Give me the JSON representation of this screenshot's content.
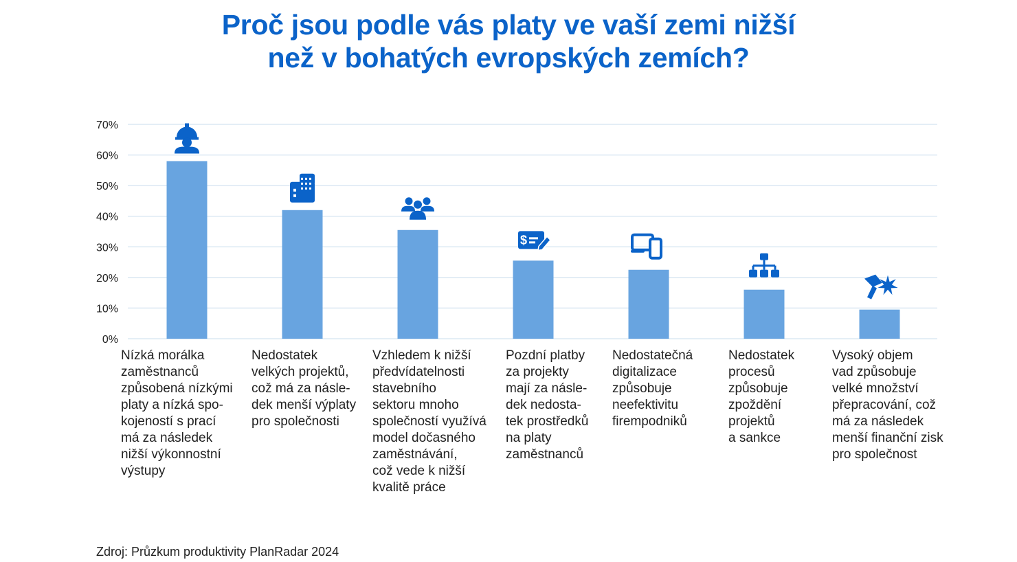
{
  "title_lines": [
    "Proč jsou podle vás platy ve vaší zemi nižší",
    "než v bohatých evropských zemích?"
  ],
  "source": "Zdroj: Průzkum produktivity PlanRadar 2024",
  "colors": {
    "title": "#0b63c9",
    "bar": "#68a4e0",
    "icon": "#0b63c9",
    "grid": "#dbe8f3",
    "text": "#222222"
  },
  "chart_data": {
    "type": "bar",
    "title": "Proč jsou podle vás platy ve vaší zemi nižší než v bohatých evropských zemích?",
    "xlabel": "",
    "ylabel": "",
    "ylim": [
      0,
      70
    ],
    "y_ticks": [
      0,
      10,
      20,
      30,
      40,
      50,
      60,
      70
    ],
    "y_tick_suffix": "%",
    "grid": true,
    "categories": [
      [
        "Nízká morálka",
        "zaměstnanců",
        "způsobená nízkými",
        "platy a nízká spo-",
        "kojeností s prací",
        "má za následek",
        "nižší výkonnostní",
        "výstupy"
      ],
      [
        "Nedostatek",
        "velkých projektů,",
        "což má za násle-",
        "dek menší výplaty",
        "pro společnosti"
      ],
      [
        "Vzhledem k nižší",
        "předvídatelnosti",
        "stavebního",
        "sektoru mnoho",
        "společností využívá",
        "model dočasného",
        "zaměstnávání,",
        "což vede k nižší",
        "kvalitě práce"
      ],
      [
        "Pozdní platby",
        "za projekty",
        "mají za násle-",
        "dek nedosta-",
        "tek prostředků",
        "na platy",
        "zaměstnanců"
      ],
      [
        "Nedostatečná",
        "digitalizace",
        "způsobuje",
        "neefektivitu",
        "firempodniků"
      ],
      [
        "Nedostatek",
        "procesů",
        "způsobuje",
        "zpoždění",
        "projektů",
        "a sankce"
      ],
      [
        "Vysoký objem",
        "vad způsobuje",
        "velké množství",
        "přepracování, což",
        "má za následek",
        "menší finanční zisk",
        "pro společnost"
      ]
    ],
    "values": [
      58,
      42,
      35.5,
      25.5,
      22.5,
      16,
      9.5
    ],
    "icons": [
      "worker-helmet-icon",
      "building-icon",
      "people-group-icon",
      "payment-card-icon",
      "devices-icon",
      "hierarchy-icon",
      "hammer-spark-icon"
    ]
  }
}
